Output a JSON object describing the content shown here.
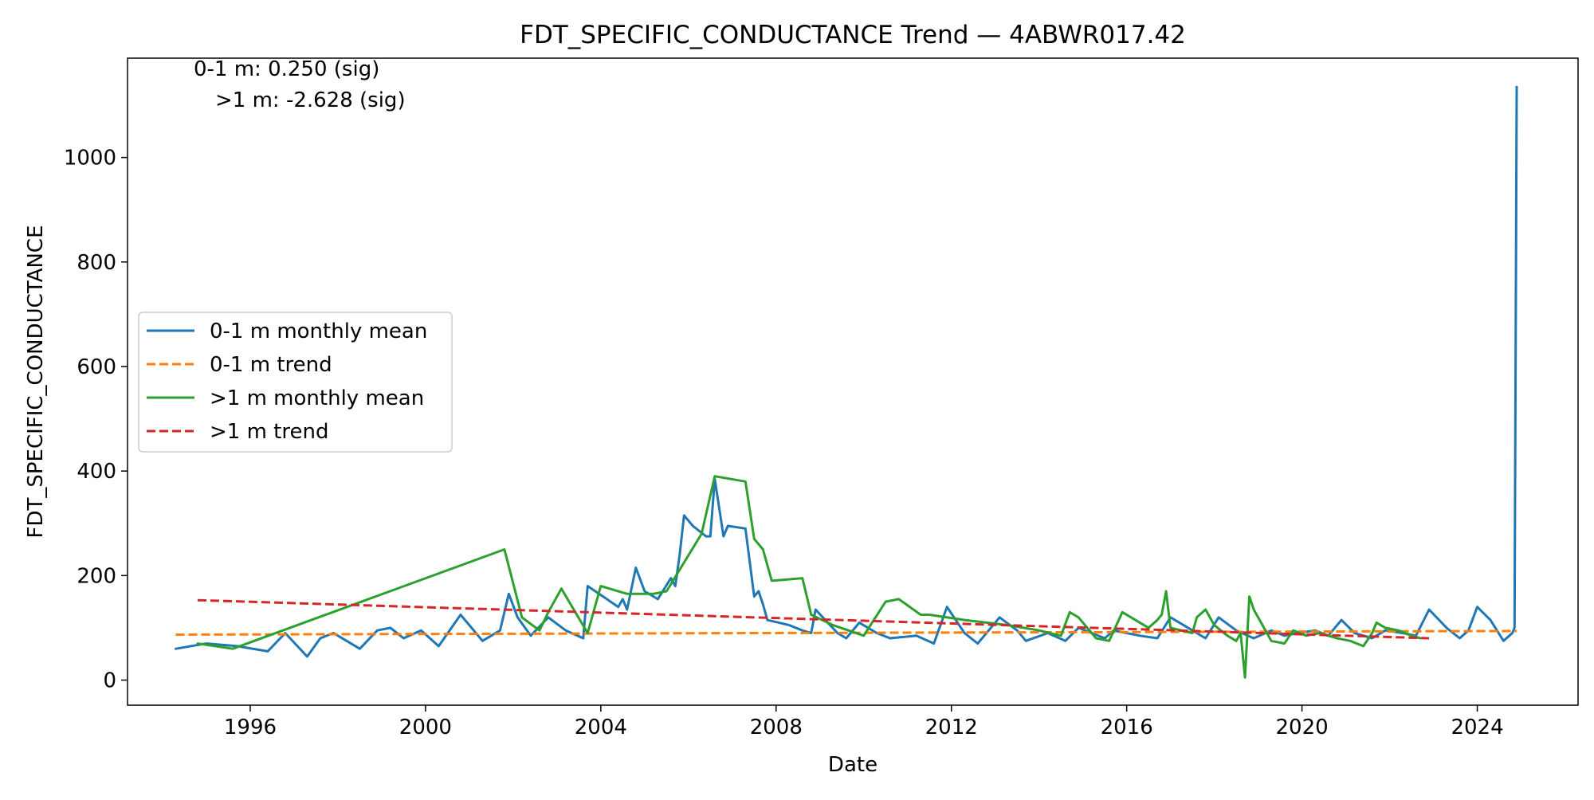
{
  "chart_data": {
    "type": "line",
    "title": "FDT_SPECIFIC_CONDUCTANCE Trend — 4ABWR017.42",
    "xlabel": "Date",
    "ylabel": "FDT_SPECIFIC_CONDUCTANCE",
    "xlim": [
      1993.2,
      2026.3
    ],
    "ylim": [
      -48,
      1190
    ],
    "x_ticks": [
      1996,
      2000,
      2004,
      2008,
      2012,
      2016,
      2020,
      2024
    ],
    "x_tick_labels": [
      "1996",
      "2000",
      "2004",
      "2008",
      "2012",
      "2016",
      "2020",
      "2024"
    ],
    "y_ticks": [
      0,
      200,
      400,
      600,
      800,
      1000
    ],
    "y_tick_labels": [
      "0",
      "200",
      "400",
      "600",
      "800",
      "1000"
    ],
    "grid": false,
    "legend_position": "center-left",
    "annotations": [
      "0-1 m: 0.250 (sig)",
      ">1 m: -2.628 (sig)"
    ],
    "series": [
      {
        "name": "0-1 m monthly mean",
        "color": "#1f77b4",
        "style": "solid",
        "x": [
          1994.3,
          1995.0,
          1995.7,
          1996.4,
          1996.8,
          1997.3,
          1997.6,
          1997.9,
          1998.2,
          1998.5,
          1998.9,
          1999.2,
          1999.5,
          1999.9,
          2000.3,
          2000.8,
          2001.3,
          2001.7,
          2001.9,
          2002.1,
          2002.4,
          2002.8,
          2003.2,
          2003.6,
          2003.7,
          2004.4,
          2004.5,
          2004.6,
          2004.8,
          2005.0,
          2005.3,
          2005.6,
          2005.7,
          2005.8,
          2005.9,
          2006.1,
          2006.4,
          2006.5,
          2006.6,
          2006.8,
          2006.9,
          2007.3,
          2007.5,
          2007.6,
          2007.7,
          2007.8,
          2008.3,
          2008.6,
          2008.8,
          2008.9,
          2009.4,
          2009.6,
          2009.9,
          2010.3,
          2010.6,
          2011.2,
          2011.6,
          2011.9,
          2012.3,
          2012.6,
          2013.1,
          2013.5,
          2013.7,
          2014.2,
          2014.6,
          2014.9,
          2015.5,
          2015.7,
          2016.3,
          2016.7,
          2017.0,
          2017.3,
          2017.6,
          2017.8,
          2018.1,
          2018.5,
          2018.9,
          2019.3,
          2019.6,
          2019.9,
          2020.3,
          2020.6,
          2020.9,
          2021.2,
          2021.6,
          2021.9,
          2022.3,
          2022.6,
          2022.9,
          2023.3,
          2023.6,
          2023.8,
          2024.0,
          2024.3,
          2024.6,
          2024.8,
          2024.85,
          2024.9
        ],
        "y": [
          60,
          70,
          65,
          55,
          90,
          45,
          80,
          90,
          75,
          60,
          95,
          100,
          80,
          95,
          65,
          125,
          75,
          95,
          165,
          120,
          85,
          120,
          95,
          80,
          180,
          140,
          155,
          135,
          215,
          170,
          155,
          195,
          180,
          240,
          315,
          295,
          275,
          275,
          385,
          275,
          295,
          290,
          160,
          170,
          145,
          115,
          105,
          95,
          90,
          135,
          90,
          80,
          110,
          90,
          80,
          85,
          70,
          140,
          90,
          70,
          120,
          95,
          75,
          90,
          75,
          100,
          80,
          95,
          85,
          80,
          120,
          105,
          90,
          80,
          120,
          95,
          80,
          95,
          85,
          90,
          95,
          85,
          115,
          90,
          80,
          95,
          90,
          85,
          135,
          100,
          80,
          95,
          140,
          115,
          75,
          90,
          100,
          1135
        ]
      },
      {
        "name": "0-1 m trend",
        "color": "#ff7f0e",
        "style": "dashed",
        "x": [
          1994.3,
          2024.9
        ],
        "y": [
          87,
          94
        ]
      },
      {
        "name": ">1 m monthly mean",
        "color": "#2ca02c",
        "style": "solid",
        "x": [
          1994.8,
          1995.6,
          2001.8,
          2002.2,
          2002.6,
          2002.8,
          2003.1,
          2003.7,
          2004.0,
          2004.6,
          2005.2,
          2005.5,
          2006.3,
          2006.6,
          2007.3,
          2007.5,
          2007.7,
          2007.9,
          2008.6,
          2008.8,
          2009.3,
          2010.0,
          2010.5,
          2010.8,
          2011.3,
          2011.5,
          2012.3,
          2012.8,
          2013.3,
          2014.0,
          2014.5,
          2014.7,
          2014.9,
          2015.3,
          2015.6,
          2015.9,
          2016.5,
          2016.7,
          2016.8,
          2016.9,
          2017.0,
          2017.5,
          2017.6,
          2017.8,
          2018.0,
          2018.3,
          2018.5,
          2018.6,
          2018.7,
          2018.8,
          2018.9,
          2019.3,
          2019.6,
          2019.8,
          2020.1,
          2020.4,
          2020.8,
          2021.1,
          2021.4,
          2021.6,
          2021.7,
          2021.9,
          2022.2,
          2022.5,
          2022.7
        ],
        "y": [
          70,
          60,
          250,
          120,
          95,
          130,
          175,
          90,
          180,
          165,
          165,
          170,
          280,
          390,
          380,
          270,
          250,
          190,
          195,
          125,
          105,
          85,
          150,
          155,
          125,
          125,
          115,
          110,
          105,
          95,
          85,
          130,
          120,
          80,
          75,
          130,
          100,
          115,
          125,
          170,
          100,
          90,
          120,
          135,
          105,
          85,
          75,
          90,
          5,
          160,
          135,
          75,
          70,
          95,
          85,
          90,
          80,
          75,
          65,
          90,
          110,
          100,
          95,
          85,
          80
        ]
      },
      {
        "name": ">1 m trend",
        "color": "#d62728",
        "style": "dashed",
        "x": [
          1994.8,
          2022.9
        ],
        "y": [
          153,
          80
        ]
      }
    ]
  }
}
